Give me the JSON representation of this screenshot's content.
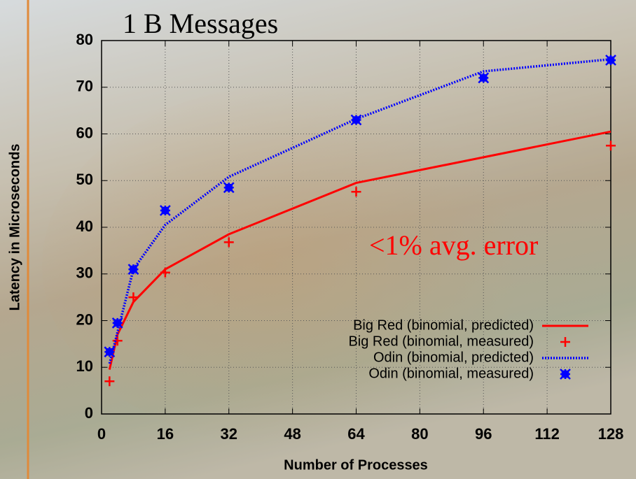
{
  "chart_data": {
    "type": "line",
    "title": "1 B Messages",
    "annotation": "<1% avg. error",
    "x_label": "Number of Processes",
    "y_label": "Latency in Microseconds",
    "xlim": [
      0,
      128
    ],
    "ylim": [
      0,
      80
    ],
    "xticks": [
      0,
      16,
      32,
      48,
      64,
      80,
      96,
      112,
      128
    ],
    "yticks": [
      0,
      10,
      20,
      30,
      40,
      50,
      60,
      70,
      80
    ],
    "grid": true,
    "legend": "lower right",
    "series": [
      {
        "name": "Big Red (binomial, predicted)",
        "color": "#ff0000",
        "style": "solid",
        "x": [
          2,
          4,
          8,
          16,
          32,
          64,
          128
        ],
        "values": [
          9.5,
          17,
          24,
          31,
          38.5,
          49.5,
          60.5
        ]
      },
      {
        "name": "Big Red (binomial, measured)",
        "color": "#ff0000",
        "style": "plus",
        "x": [
          2,
          4,
          8,
          16,
          32,
          64,
          128
        ],
        "values": [
          7,
          15.7,
          25,
          30.3,
          36.8,
          47.6,
          57.5
        ]
      },
      {
        "name": "Odin (binomial, predicted)",
        "color": "#0000ff",
        "style": "dotted",
        "x": [
          2,
          4,
          8,
          16,
          32,
          64,
          96,
          128
        ],
        "values": [
          10.8,
          17.5,
          31,
          40.5,
          50.8,
          63.2,
          73.4,
          76
        ]
      },
      {
        "name": "Odin (binomial, measured)",
        "color": "#0000ff",
        "style": "star",
        "x": [
          2,
          4,
          8,
          16,
          32,
          64,
          96,
          128
        ],
        "values": [
          13.3,
          19.5,
          31,
          43.6,
          48.5,
          63,
          72,
          75.8
        ]
      }
    ]
  }
}
